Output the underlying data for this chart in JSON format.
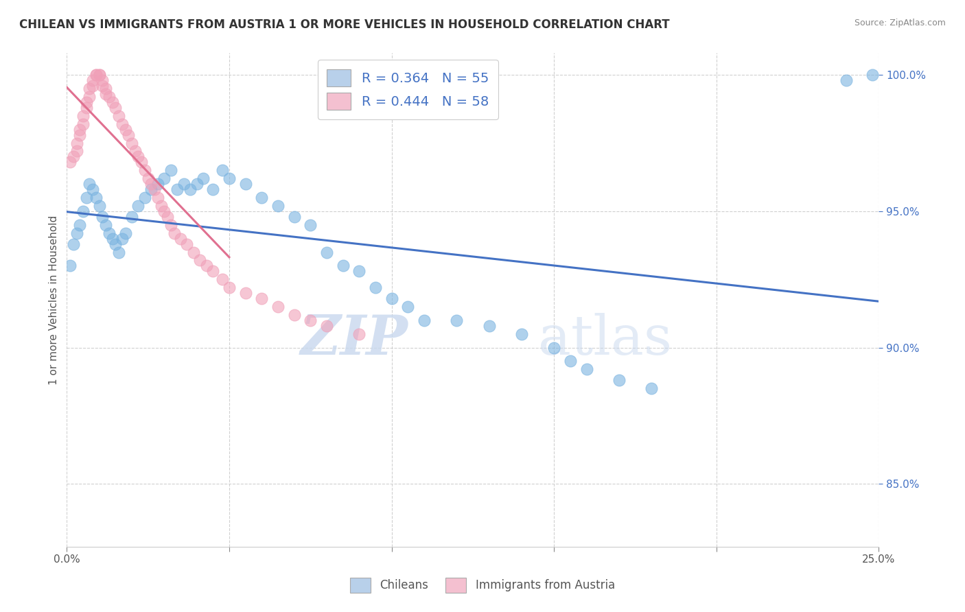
{
  "title": "CHILEAN VS IMMIGRANTS FROM AUSTRIA 1 OR MORE VEHICLES IN HOUSEHOLD CORRELATION CHART",
  "source": "Source: ZipAtlas.com",
  "xlabel_chileans": "Chileans",
  "xlabel_immigrants": "Immigrants from Austria",
  "ylabel": "1 or more Vehicles in Household",
  "xmin": 0.0,
  "xmax": 0.25,
  "ymin": 0.827,
  "ymax": 1.008,
  "yticks": [
    0.85,
    0.9,
    0.95,
    1.0
  ],
  "ytick_labels": [
    "85.0%",
    "90.0%",
    "95.0%",
    "100.0%"
  ],
  "xticks": [
    0.0,
    0.05,
    0.1,
    0.15,
    0.2,
    0.25
  ],
  "xtick_labels": [
    "0.0%",
    "",
    "",
    "",
    "",
    "25.0%"
  ],
  "r_blue": 0.364,
  "n_blue": 55,
  "r_pink": 0.444,
  "n_pink": 58,
  "blue_color": "#7ab3e0",
  "pink_color": "#f0a0b8",
  "blue_line_color": "#4472c4",
  "pink_line_color": "#e07090",
  "legend_box_color_blue": "#b8d0ea",
  "legend_box_color_pink": "#f4c0d0",
  "watermark_zip": "ZIP",
  "watermark_atlas": "atlas",
  "chilean_x": [
    0.001,
    0.002,
    0.003,
    0.004,
    0.005,
    0.006,
    0.007,
    0.008,
    0.009,
    0.01,
    0.011,
    0.012,
    0.013,
    0.014,
    0.015,
    0.016,
    0.017,
    0.018,
    0.02,
    0.022,
    0.024,
    0.026,
    0.028,
    0.03,
    0.032,
    0.034,
    0.036,
    0.038,
    0.04,
    0.042,
    0.045,
    0.048,
    0.05,
    0.055,
    0.06,
    0.065,
    0.07,
    0.075,
    0.08,
    0.085,
    0.09,
    0.095,
    0.1,
    0.105,
    0.11,
    0.12,
    0.13,
    0.14,
    0.15,
    0.155,
    0.16,
    0.17,
    0.18,
    0.24,
    0.248
  ],
  "chilean_y": [
    0.93,
    0.938,
    0.942,
    0.945,
    0.95,
    0.955,
    0.96,
    0.958,
    0.955,
    0.952,
    0.948,
    0.945,
    0.942,
    0.94,
    0.938,
    0.935,
    0.94,
    0.942,
    0.948,
    0.952,
    0.955,
    0.958,
    0.96,
    0.962,
    0.965,
    0.958,
    0.96,
    0.958,
    0.96,
    0.962,
    0.958,
    0.965,
    0.962,
    0.96,
    0.955,
    0.952,
    0.948,
    0.945,
    0.935,
    0.93,
    0.928,
    0.922,
    0.918,
    0.915,
    0.91,
    0.91,
    0.908,
    0.905,
    0.9,
    0.895,
    0.892,
    0.888,
    0.885,
    0.998,
    1.0
  ],
  "austria_x": [
    0.001,
    0.002,
    0.003,
    0.003,
    0.004,
    0.004,
    0.005,
    0.005,
    0.006,
    0.006,
    0.007,
    0.007,
    0.008,
    0.008,
    0.009,
    0.009,
    0.01,
    0.01,
    0.011,
    0.011,
    0.012,
    0.012,
    0.013,
    0.014,
    0.015,
    0.016,
    0.017,
    0.018,
    0.019,
    0.02,
    0.021,
    0.022,
    0.023,
    0.024,
    0.025,
    0.026,
    0.027,
    0.028,
    0.029,
    0.03,
    0.031,
    0.032,
    0.033,
    0.035,
    0.037,
    0.039,
    0.041,
    0.043,
    0.045,
    0.048,
    0.05,
    0.055,
    0.06,
    0.065,
    0.07,
    0.075,
    0.08,
    0.09
  ],
  "austria_y": [
    0.968,
    0.97,
    0.972,
    0.975,
    0.978,
    0.98,
    0.982,
    0.985,
    0.988,
    0.99,
    0.992,
    0.995,
    0.996,
    0.998,
    1.0,
    1.0,
    1.0,
    1.0,
    0.998,
    0.996,
    0.995,
    0.993,
    0.992,
    0.99,
    0.988,
    0.985,
    0.982,
    0.98,
    0.978,
    0.975,
    0.972,
    0.97,
    0.968,
    0.965,
    0.962,
    0.96,
    0.958,
    0.955,
    0.952,
    0.95,
    0.948,
    0.945,
    0.942,
    0.94,
    0.938,
    0.935,
    0.932,
    0.93,
    0.928,
    0.925,
    0.922,
    0.92,
    0.918,
    0.915,
    0.912,
    0.91,
    0.908,
    0.905
  ]
}
